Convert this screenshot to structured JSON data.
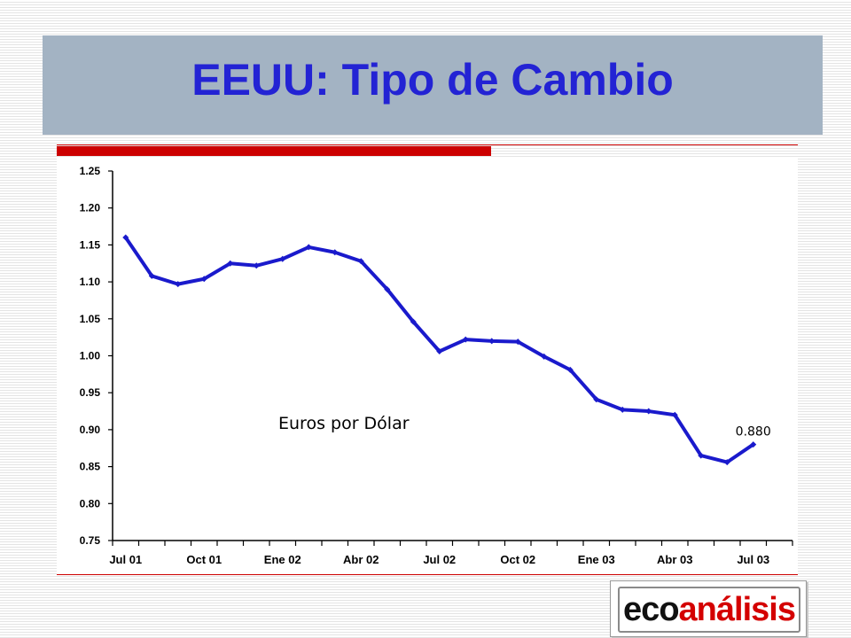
{
  "header": {
    "title": "EEUU: Tipo de Cambio"
  },
  "logo": {
    "part1": "eco",
    "part2": "análisis",
    "color1": "#111111",
    "color2": "#d40000"
  },
  "colors": {
    "line": "#1a1acc",
    "title": "#2323d4",
    "accent": "#cc0000",
    "title_bg": "#a3b3c3"
  },
  "chart_data": {
    "type": "line",
    "title": "",
    "xlabel": "",
    "ylabel": "",
    "ylim": [
      0.75,
      1.25
    ],
    "y_ticks": [
      "0.75",
      "0.80",
      "0.85",
      "0.90",
      "0.95",
      "1.00",
      "1.05",
      "1.10",
      "1.15",
      "1.20",
      "1.25"
    ],
    "x_tick_labels": [
      "Jul 01",
      "Oct 01",
      "Ene 02",
      "Abr 02",
      "Jul 02",
      "Oct 02",
      "Ene 03",
      "Abr 03",
      "Jul 03"
    ],
    "grid": false,
    "series": [
      {
        "name": "Euros por Dólar",
        "values": [
          1.16,
          1.108,
          1.097,
          1.104,
          1.125,
          1.122,
          1.131,
          1.147,
          1.14,
          1.128,
          1.09,
          1.046,
          1.006,
          1.022,
          1.02,
          1.019,
          0.999,
          0.981,
          0.941,
          0.927,
          0.925,
          0.92,
          0.865,
          0.856,
          0.88
        ]
      }
    ],
    "annotations": [
      {
        "point_index": 24,
        "text": "0.880"
      }
    ]
  }
}
